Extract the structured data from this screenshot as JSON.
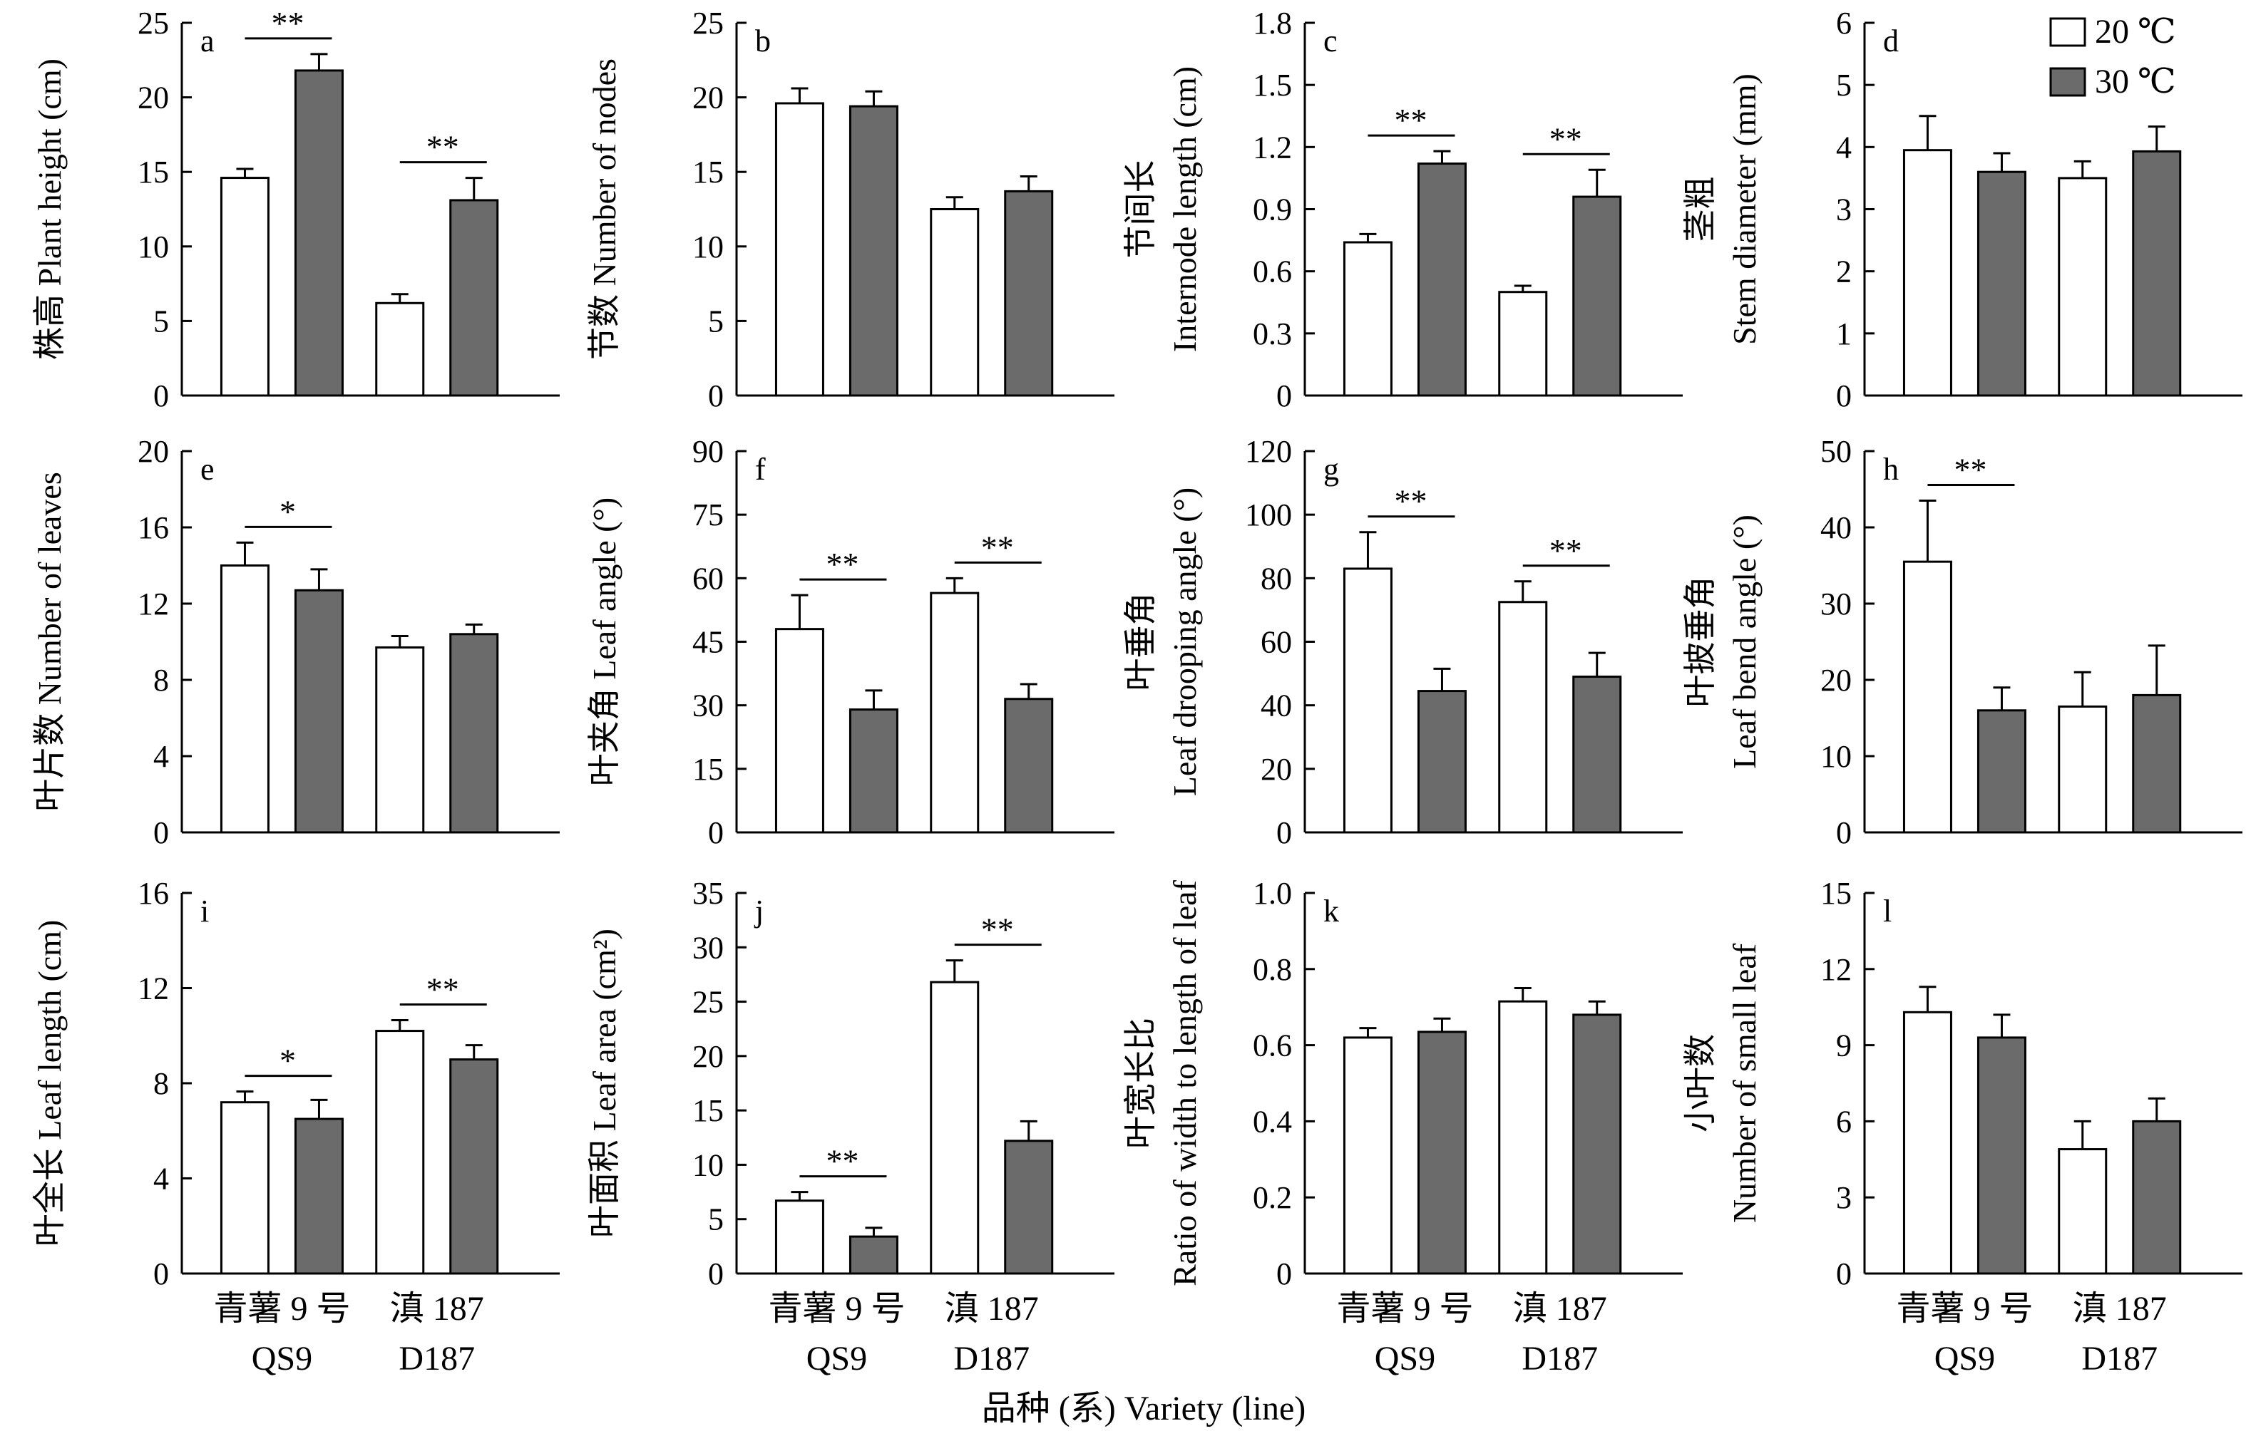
{
  "x_title": "品种 (系) Variety (line)",
  "legend": [
    {
      "label": "20 ℃",
      "color": "#ffffff"
    },
    {
      "label": "30 ℃",
      "color": "#6b6b6b"
    }
  ],
  "chart_data": [
    {
      "id": "a",
      "type": "bar",
      "ylabel_lines": [
        "株高 Plant height (cm)"
      ],
      "ylim": [
        0,
        25
      ],
      "yticks": [
        "0",
        "5",
        "10",
        "15",
        "20",
        "25"
      ],
      "categories": [
        [
          "青薯 9 号",
          "QS9"
        ],
        [
          "滇 187",
          "D187"
        ]
      ],
      "series": [
        {
          "name": "20 ℃",
          "values": [
            14.6,
            6.2
          ],
          "errors": [
            0.6,
            0.6
          ]
        },
        {
          "name": "30 ℃",
          "values": [
            21.8,
            13.1
          ],
          "errors": [
            1.1,
            1.5
          ]
        }
      ],
      "significance": [
        {
          "group": 0,
          "label": "**"
        },
        {
          "group": 1,
          "label": "**"
        }
      ]
    },
    {
      "id": "b",
      "type": "bar",
      "ylabel_lines": [
        "节数 Number of nodes"
      ],
      "ylim": [
        0,
        25
      ],
      "yticks": [
        "0",
        "5",
        "10",
        "15",
        "20",
        "25"
      ],
      "categories": [
        [
          "青薯 9 号",
          "QS9"
        ],
        [
          "滇 187",
          "D187"
        ]
      ],
      "series": [
        {
          "name": "20 ℃",
          "values": [
            19.6,
            12.5
          ],
          "errors": [
            1.0,
            0.8
          ]
        },
        {
          "name": "30 ℃",
          "values": [
            19.4,
            13.7
          ],
          "errors": [
            1.0,
            1.0
          ]
        }
      ],
      "significance": []
    },
    {
      "id": "c",
      "type": "bar",
      "ylabel_lines": [
        "节间长",
        "Internode length (cm)"
      ],
      "ylim": [
        0,
        1.8
      ],
      "yticks": [
        "0",
        "0.3",
        "0.6",
        "0.9",
        "1.2",
        "1.5",
        "1.8"
      ],
      "categories": [
        [
          "青薯 9 号",
          "QS9"
        ],
        [
          "滇 187",
          "D187"
        ]
      ],
      "series": [
        {
          "name": "20 ℃",
          "values": [
            0.74,
            0.5
          ],
          "errors": [
            0.04,
            0.03
          ]
        },
        {
          "name": "30 ℃",
          "values": [
            1.12,
            0.96
          ],
          "errors": [
            0.06,
            0.13
          ]
        }
      ],
      "significance": [
        {
          "group": 0,
          "label": "**"
        },
        {
          "group": 1,
          "label": "**"
        }
      ]
    },
    {
      "id": "d",
      "type": "bar",
      "ylabel_lines": [
        "茎粗",
        "Stem diameter (mm)"
      ],
      "ylim": [
        0,
        6
      ],
      "yticks": [
        "0",
        "1",
        "2",
        "3",
        "4",
        "5",
        "6"
      ],
      "categories": [
        [
          "青薯 9 号",
          "QS9"
        ],
        [
          "滇 187",
          "D187"
        ]
      ],
      "series": [
        {
          "name": "20 ℃",
          "values": [
            3.95,
            3.5
          ],
          "errors": [
            0.55,
            0.27
          ]
        },
        {
          "name": "30 ℃",
          "values": [
            3.6,
            3.93
          ],
          "errors": [
            0.3,
            0.4
          ]
        }
      ],
      "significance": []
    },
    {
      "id": "e",
      "type": "bar",
      "ylabel_lines": [
        "叶片数 Number of leaves"
      ],
      "ylim": [
        0,
        20
      ],
      "yticks": [
        "0",
        "4",
        "8",
        "12",
        "16",
        "20"
      ],
      "categories": [
        [
          "青薯 9 号",
          "QS9"
        ],
        [
          "滇 187",
          "D187"
        ]
      ],
      "series": [
        {
          "name": "20 ℃",
          "values": [
            14.0,
            9.7
          ],
          "errors": [
            1.2,
            0.6
          ]
        },
        {
          "name": "30 ℃",
          "values": [
            12.7,
            10.4
          ],
          "errors": [
            1.1,
            0.5
          ]
        }
      ],
      "significance": [
        {
          "group": 0,
          "label": "*"
        }
      ]
    },
    {
      "id": "f",
      "type": "bar",
      "ylabel_lines": [
        "叶夹角 Leaf angle (°)"
      ],
      "ylim": [
        0,
        90
      ],
      "yticks": [
        "0",
        "15",
        "30",
        "45",
        "60",
        "75",
        "90"
      ],
      "categories": [
        [
          "青薯 9 号",
          "QS9"
        ],
        [
          "滇 187",
          "D187"
        ]
      ],
      "series": [
        {
          "name": "20 ℃",
          "values": [
            48,
            56.5
          ],
          "errors": [
            8,
            3.5
          ]
        },
        {
          "name": "30 ℃",
          "values": [
            29,
            31.5
          ],
          "errors": [
            4.5,
            3.5
          ]
        }
      ],
      "significance": [
        {
          "group": 0,
          "label": "**"
        },
        {
          "group": 1,
          "label": "**"
        }
      ]
    },
    {
      "id": "g",
      "type": "bar",
      "ylabel_lines": [
        "叶垂角",
        "Leaf drooping angle (°)"
      ],
      "ylim": [
        0,
        120
      ],
      "yticks": [
        "0",
        "20",
        "40",
        "60",
        "80",
        "100",
        "120"
      ],
      "categories": [
        [
          "青薯 9 号",
          "QS9"
        ],
        [
          "滇 187",
          "D187"
        ]
      ],
      "series": [
        {
          "name": "20 ℃",
          "values": [
            83,
            72.5
          ],
          "errors": [
            11.5,
            6.5
          ]
        },
        {
          "name": "30 ℃",
          "values": [
            44.5,
            49
          ],
          "errors": [
            7,
            7.5
          ]
        }
      ],
      "significance": [
        {
          "group": 0,
          "label": "**"
        },
        {
          "group": 1,
          "label": "**"
        }
      ]
    },
    {
      "id": "h",
      "type": "bar",
      "ylabel_lines": [
        "叶披垂角",
        "Leaf bend angle (°)"
      ],
      "ylim": [
        0,
        50
      ],
      "yticks": [
        "0",
        "10",
        "20",
        "30",
        "40",
        "50"
      ],
      "categories": [
        [
          "青薯 9 号",
          "QS9"
        ],
        [
          "滇 187",
          "D187"
        ]
      ],
      "series": [
        {
          "name": "20 ℃",
          "values": [
            35.5,
            16.5
          ],
          "errors": [
            8,
            4.5
          ]
        },
        {
          "name": "30 ℃",
          "values": [
            16,
            18
          ],
          "errors": [
            3,
            6.5
          ]
        }
      ],
      "significance": [
        {
          "group": 0,
          "label": "**"
        }
      ]
    },
    {
      "id": "i",
      "type": "bar",
      "ylabel_lines": [
        "叶全长 Leaf length (cm)"
      ],
      "ylim": [
        0,
        16
      ],
      "yticks": [
        "0",
        "4",
        "8",
        "12",
        "16"
      ],
      "categories": [
        [
          "青薯 9 号",
          "QS9"
        ],
        [
          "滇 187",
          "D187"
        ]
      ],
      "series": [
        {
          "name": "20 ℃",
          "values": [
            7.2,
            10.2
          ],
          "errors": [
            0.45,
            0.45
          ]
        },
        {
          "name": "30 ℃",
          "values": [
            6.5,
            9.0
          ],
          "errors": [
            0.8,
            0.6
          ]
        }
      ],
      "significance": [
        {
          "group": 0,
          "label": "*"
        },
        {
          "group": 1,
          "label": "**"
        }
      ]
    },
    {
      "id": "j",
      "type": "bar",
      "ylabel_lines": [
        "叶面积 Leaf area (cm²)"
      ],
      "ylim": [
        0,
        35
      ],
      "yticks": [
        "0",
        "5",
        "10",
        "15",
        "20",
        "25",
        "30",
        "35"
      ],
      "categories": [
        [
          "青薯 9 号",
          "QS9"
        ],
        [
          "滇 187",
          "D187"
        ]
      ],
      "series": [
        {
          "name": "20 ℃",
          "values": [
            6.7,
            26.8
          ],
          "errors": [
            0.8,
            2.0
          ]
        },
        {
          "name": "30 ℃",
          "values": [
            3.4,
            12.2
          ],
          "errors": [
            0.8,
            1.8
          ]
        }
      ],
      "significance": [
        {
          "group": 0,
          "label": "**"
        },
        {
          "group": 1,
          "label": "**"
        }
      ]
    },
    {
      "id": "k",
      "type": "bar",
      "ylabel_lines": [
        "叶宽长比",
        "Ratio of width to length of leaf"
      ],
      "ylim": [
        0,
        1.0
      ],
      "yticks": [
        "0",
        "0.2",
        "0.4",
        "0.6",
        "0.8",
        "1.0"
      ],
      "categories": [
        [
          "青薯 9 号",
          "QS9"
        ],
        [
          "滇 187",
          "D187"
        ]
      ],
      "series": [
        {
          "name": "20 ℃",
          "values": [
            0.62,
            0.715
          ],
          "errors": [
            0.025,
            0.035
          ]
        },
        {
          "name": "30 ℃",
          "values": [
            0.635,
            0.68
          ],
          "errors": [
            0.035,
            0.035
          ]
        }
      ],
      "significance": []
    },
    {
      "id": "l",
      "type": "bar",
      "ylabel_lines": [
        "小叶数",
        "Number of small leaf"
      ],
      "ylim": [
        0,
        15
      ],
      "yticks": [
        "0",
        "3",
        "6",
        "9",
        "12",
        "15"
      ],
      "categories": [
        [
          "青薯 9 号",
          "QS9"
        ],
        [
          "滇 187",
          "D187"
        ]
      ],
      "series": [
        {
          "name": "20 ℃",
          "values": [
            10.3,
            4.9
          ],
          "errors": [
            1.0,
            1.1
          ]
        },
        {
          "name": "30 ℃",
          "values": [
            9.3,
            6.0
          ],
          "errors": [
            0.9,
            0.9
          ]
        }
      ],
      "significance": []
    }
  ]
}
